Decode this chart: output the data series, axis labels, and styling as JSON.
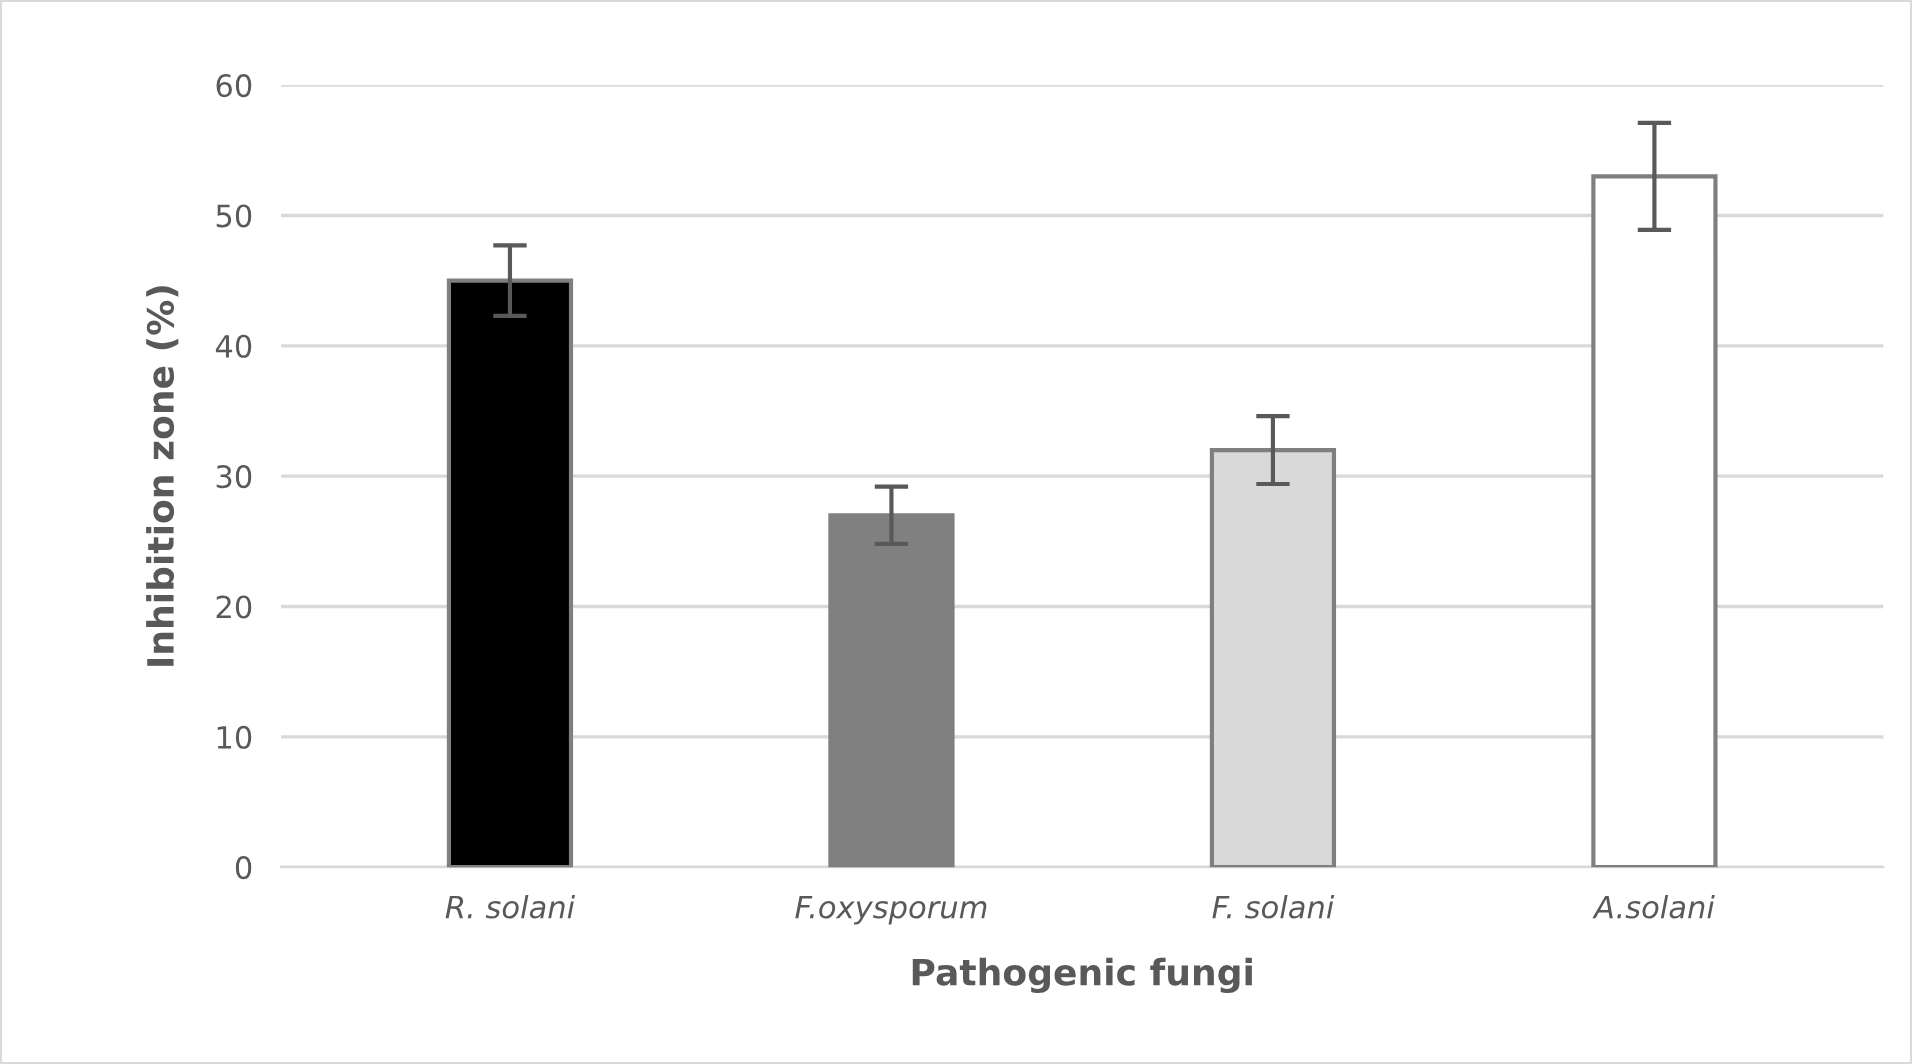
{
  "chart_data": {
    "type": "bar",
    "xlabel": "Pathogenic fungi",
    "ylabel": "Inhibition zone (%)",
    "categories": [
      "R. solani",
      "F.oxysporum",
      "F. solani",
      "A.solani"
    ],
    "values": [
      45,
      27,
      32,
      53
    ],
    "errors": [
      2.7,
      2.2,
      2.6,
      4.1
    ],
    "colors": [
      "#000000",
      "#808080",
      "#d9d9d9",
      "#ffffff"
    ],
    "ylim": [
      0,
      60
    ],
    "yticks": [
      0,
      10,
      20,
      30,
      40,
      50,
      60
    ],
    "grid": "y"
  }
}
